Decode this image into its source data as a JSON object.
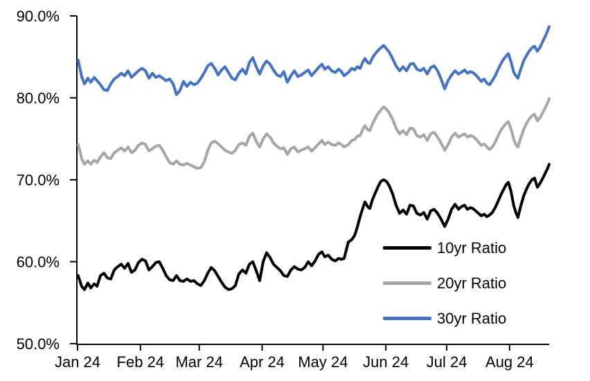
{
  "chart": {
    "background_color": "#FFFFFF",
    "axis_color": "#000000"
  },
  "chart_data": {
    "type": "line",
    "grid": "off",
    "legend": {
      "position": "inside-lower-right"
    },
    "x_axis": {
      "tick_labels": [
        "Jan 24",
        "Feb 24",
        "Mar 24",
        "Apr 24",
        "May 24",
        "Jun 24",
        "Jul 24",
        "Aug 24"
      ],
      "tick_positions_days": [
        0,
        31,
        60,
        91,
        121,
        152,
        182,
        213
      ],
      "xlim_days": [
        0,
        232.5
      ]
    },
    "y_axis": {
      "tick_labels": [
        "50.0%",
        "60.0%",
        "70.0%",
        "80.0%",
        "90.0%"
      ],
      "tick_values": [
        50,
        60,
        70,
        80,
        90
      ],
      "ylim": [
        50,
        90
      ],
      "unit": "%"
    },
    "x_days": [
      0.3,
      2.0,
      3.4,
      5.1,
      6.5,
      8.2,
      9.6,
      11.3,
      13.0,
      14.7,
      16.4,
      18.1,
      19.8,
      21.5,
      23.2,
      24.9,
      26.6,
      28.3,
      30.0,
      31.8,
      33.5,
      35.2,
      36.9,
      38.6,
      40.3,
      42.0,
      43.7,
      45.4,
      47.1,
      48.8,
      50.5,
      52.2,
      53.9,
      55.7,
      57.4,
      59.1,
      60.8,
      62.5,
      64.2,
      65.9,
      67.6,
      69.3,
      71.0,
      72.7,
      74.4,
      76.1,
      77.8,
      79.5,
      81.3,
      83.0,
      84.7,
      86.4,
      88.1,
      89.8,
      91.5,
      93.2,
      94.9,
      96.6,
      98.3,
      100.0,
      101.7,
      103.4,
      105.2,
      106.9,
      108.6,
      110.3,
      112.0,
      113.7,
      115.4,
      117.1,
      118.8,
      120.5,
      121.9,
      123.6,
      125.3,
      127.0,
      128.7,
      130.1,
      131.4,
      133.5,
      135.2,
      136.6,
      137.9,
      139.3,
      140.7,
      141.7,
      143.1,
      144.1,
      145.4,
      146.8,
      148.2,
      149.5,
      150.9,
      152.3,
      153.6,
      155.3,
      157.0,
      158.8,
      160.5,
      162.2,
      163.9,
      165.6,
      167.3,
      169.0,
      170.7,
      172.4,
      174.1,
      175.8,
      177.5,
      179.2,
      181.0,
      182.7,
      184.4,
      186.1,
      187.8,
      189.1,
      190.8,
      192.2,
      193.6,
      194.9,
      196.3,
      197.7,
      199.0,
      200.4,
      201.8,
      203.1,
      204.5,
      205.9,
      207.2,
      208.6,
      210.0,
      211.3,
      212.4,
      213.7,
      215.1,
      216.1,
      217.1,
      218.5,
      219.9,
      221.2,
      222.6,
      224.0,
      225.3,
      226.7,
      228.1,
      229.4,
      230.8,
      231.8,
      232.5
    ],
    "series": [
      {
        "name": "10yr Ratio",
        "color": "#000000",
        "values": [
          58.3,
          57.0,
          56.6,
          57.4,
          56.8,
          57.3,
          57.0,
          58.3,
          58.6,
          58.0,
          57.9,
          59.0,
          59.4,
          59.7,
          59.2,
          59.8,
          58.7,
          59.0,
          59.9,
          60.3,
          60.1,
          59.0,
          59.4,
          59.9,
          60.0,
          59.2,
          58.3,
          57.8,
          57.7,
          58.3,
          57.7,
          57.6,
          57.9,
          57.6,
          57.7,
          57.3,
          57.1,
          57.7,
          58.6,
          59.3,
          58.9,
          58.2,
          57.5,
          56.9,
          56.6,
          56.7,
          57.1,
          58.5,
          59.0,
          58.6,
          59.7,
          60.0,
          58.9,
          57.7,
          60.0,
          61.1,
          60.5,
          59.7,
          59.3,
          58.9,
          58.3,
          58.2,
          59.0,
          59.4,
          59.1,
          59.0,
          59.3,
          60.0,
          59.5,
          60.1,
          60.9,
          61.2,
          60.6,
          60.8,
          60.3,
          60.1,
          60.4,
          60.3,
          60.4,
          62.4,
          62.7,
          63.2,
          64.2,
          65.5,
          66.6,
          67.3,
          66.7,
          66.5,
          67.6,
          68.4,
          69.2,
          69.8,
          70.0,
          69.8,
          69.3,
          68.3,
          66.9,
          65.9,
          66.3,
          65.8,
          66.9,
          66.8,
          65.9,
          65.7,
          66.0,
          65.2,
          66.2,
          66.4,
          65.9,
          65.2,
          64.3,
          65.2,
          66.4,
          67.0,
          66.4,
          66.7,
          66.9,
          66.4,
          66.6,
          66.5,
          66.2,
          65.9,
          65.6,
          65.8,
          65.5,
          65.7,
          66.0,
          66.6,
          67.3,
          68.1,
          68.8,
          69.4,
          69.7,
          68.6,
          66.8,
          66.0,
          65.4,
          66.8,
          68.0,
          68.8,
          69.5,
          70.0,
          70.2,
          69.1,
          69.6,
          70.2,
          70.9,
          71.4,
          71.9
        ]
      },
      {
        "name": "20yr Ratio",
        "color": "#A6A6A6",
        "values": [
          74.3,
          72.6,
          71.9,
          72.3,
          71.9,
          72.4,
          72.1,
          72.8,
          73.3,
          72.7,
          72.6,
          73.3,
          73.6,
          73.9,
          73.5,
          74.0,
          73.3,
          73.6,
          74.2,
          74.5,
          74.3,
          73.5,
          73.8,
          74.1,
          74.2,
          73.6,
          72.8,
          72.1,
          71.9,
          72.3,
          71.9,
          71.8,
          72.0,
          71.8,
          71.6,
          71.4,
          71.5,
          72.2,
          73.6,
          74.5,
          74.7,
          74.4,
          74.0,
          73.6,
          73.4,
          73.2,
          73.6,
          74.3,
          74.5,
          74.2,
          75.3,
          75.7,
          74.7,
          74.0,
          75.0,
          75.6,
          75.2,
          74.5,
          74.1,
          73.8,
          73.9,
          73.1,
          73.8,
          74.0,
          73.4,
          73.6,
          73.8,
          74.0,
          73.5,
          73.9,
          74.4,
          74.8,
          74.3,
          74.6,
          74.3,
          74.2,
          74.5,
          74.3,
          74.0,
          74.3,
          74.8,
          74.9,
          75.3,
          75.4,
          76.2,
          76.6,
          76.1,
          76.0,
          76.8,
          77.5,
          78.1,
          78.5,
          78.9,
          78.6,
          78.2,
          77.4,
          76.3,
          75.6,
          76.0,
          75.5,
          76.3,
          76.2,
          75.4,
          75.2,
          75.5,
          74.8,
          75.6,
          75.8,
          75.2,
          74.5,
          73.6,
          74.3,
          75.2,
          75.7,
          75.2,
          75.4,
          75.6,
          75.2,
          75.4,
          75.3,
          75.0,
          74.6,
          74.2,
          74.4,
          74.0,
          73.7,
          74.0,
          74.6,
          75.3,
          76.0,
          76.5,
          76.9,
          77.1,
          76.2,
          74.9,
          74.3,
          74.0,
          75.1,
          76.1,
          76.8,
          77.4,
          77.8,
          78.0,
          77.2,
          77.6,
          78.2,
          78.9,
          79.4,
          79.9
        ]
      },
      {
        "name": "30yr Ratio",
        "color": "#4472C4",
        "values": [
          84.6,
          82.6,
          81.7,
          82.4,
          81.9,
          82.5,
          82.1,
          81.6,
          81.0,
          80.9,
          81.7,
          82.3,
          82.6,
          83.0,
          82.7,
          83.3,
          82.5,
          82.9,
          83.3,
          83.6,
          83.3,
          82.4,
          83.0,
          82.5,
          82.7,
          82.4,
          82.1,
          82.3,
          81.7,
          80.4,
          80.9,
          82.0,
          81.4,
          81.9,
          81.6,
          81.8,
          82.4,
          83.1,
          83.9,
          84.2,
          83.6,
          82.8,
          83.4,
          83.8,
          83.1,
          82.4,
          82.2,
          83.0,
          83.5,
          82.9,
          84.3,
          84.9,
          83.8,
          82.9,
          83.9,
          84.5,
          84.1,
          83.4,
          82.8,
          82.6,
          83.2,
          81.9,
          82.7,
          83.3,
          82.6,
          82.8,
          83.1,
          83.4,
          82.7,
          83.2,
          83.7,
          84.1,
          83.5,
          83.8,
          83.3,
          83.1,
          83.5,
          83.2,
          82.7,
          83.1,
          83.6,
          83.4,
          83.8,
          83.6,
          84.4,
          84.8,
          84.3,
          84.2,
          84.9,
          85.4,
          85.8,
          86.1,
          86.4,
          86.0,
          85.6,
          84.8,
          83.9,
          83.3,
          83.8,
          83.3,
          84.1,
          84.2,
          83.5,
          83.3,
          83.6,
          82.9,
          83.7,
          83.9,
          83.3,
          82.3,
          81.1,
          82.1,
          82.8,
          83.3,
          82.9,
          83.1,
          83.4,
          83.0,
          83.2,
          83.1,
          82.8,
          82.4,
          82.0,
          82.3,
          81.8,
          81.6,
          82.1,
          82.7,
          83.4,
          84.1,
          84.7,
          85.1,
          85.4,
          84.4,
          83.1,
          82.7,
          82.4,
          83.5,
          84.5,
          85.1,
          85.7,
          86.1,
          86.3,
          85.7,
          86.2,
          86.9,
          87.6,
          88.2,
          88.7
        ]
      }
    ]
  }
}
